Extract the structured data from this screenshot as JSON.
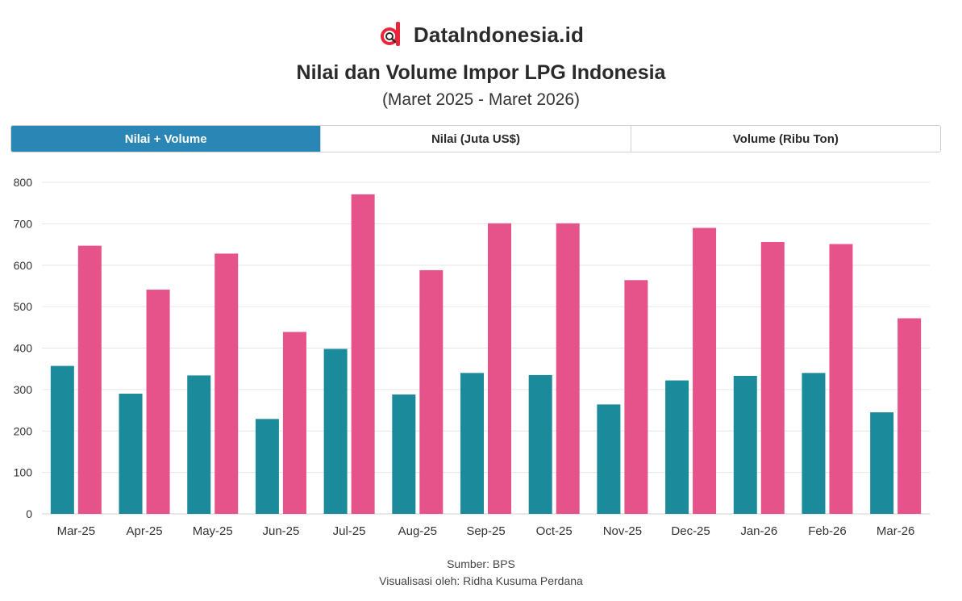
{
  "brand": {
    "name": "DataIndonesia.id",
    "logo_icon": "dataindonesia-logo-icon",
    "logo_colors": [
      "#e8253a",
      "#2b2b2b"
    ]
  },
  "header": {
    "title": "Nilai dan Volume Impor LPG Indonesia",
    "subtitle": "(Maret 2025 - Maret 2026)"
  },
  "tabs": [
    {
      "label": "Nilai + Volume",
      "active": true
    },
    {
      "label": "Nilai (Juta US$)",
      "active": false
    },
    {
      "label": "Volume (Ribu Ton)",
      "active": false
    }
  ],
  "colors": {
    "tab_active": "#2a86b5",
    "nilai": "#1b8a9a",
    "volume": "#e6538a",
    "grid": "#e6e6e6"
  },
  "chart_data": {
    "type": "bar",
    "title": "Nilai dan Volume Impor LPG Indonesia",
    "subtitle": "(Maret 2025 - Maret 2026)",
    "xlabel": "",
    "ylabel": "",
    "ylim": [
      0,
      800
    ],
    "yticks": [
      0,
      100,
      200,
      300,
      400,
      500,
      600,
      700,
      800
    ],
    "grid": true,
    "legend": "none",
    "categories": [
      "Mar-25",
      "Apr-25",
      "May-25",
      "Jun-25",
      "Jul-25",
      "Aug-25",
      "Sep-25",
      "Oct-25",
      "Nov-25",
      "Dec-25",
      "Jan-26",
      "Feb-26",
      "Mar-26"
    ],
    "series": [
      {
        "color": "#1b8a9a",
        "values": [
          357,
          290,
          334,
          229,
          398,
          288,
          340,
          335,
          264,
          322,
          333,
          340,
          245
        ]
      },
      {
        "color": "#e6538a",
        "values": [
          647,
          541,
          628,
          439,
          771,
          588,
          701,
          701,
          564,
          690,
          656,
          651,
          472
        ]
      }
    ]
  },
  "footer": {
    "source": "Sumber: BPS",
    "credit": "Visualisasi oleh: Ridha Kusuma Perdana"
  }
}
